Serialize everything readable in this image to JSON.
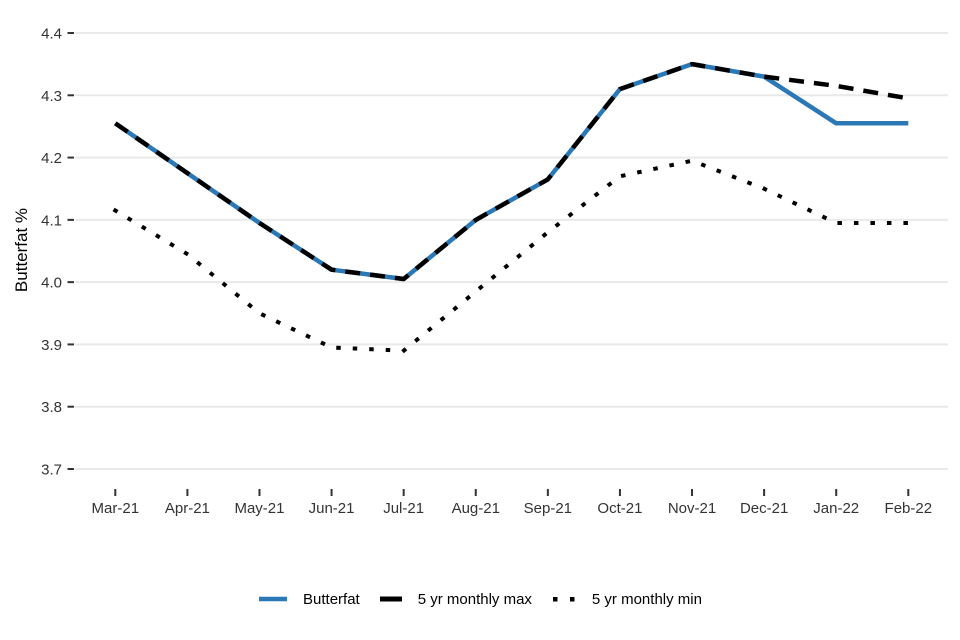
{
  "chart_data": {
    "type": "line",
    "title": "",
    "xlabel": "",
    "ylabel": "Butterfat %",
    "categories": [
      "Mar-21",
      "Apr-21",
      "May-21",
      "Jun-21",
      "Jul-21",
      "Aug-21",
      "Sep-21",
      "Oct-21",
      "Nov-21",
      "Dec-21",
      "Jan-22",
      "Feb-22"
    ],
    "y_ticks": [
      3.7,
      3.8,
      3.9,
      4.0,
      4.1,
      4.2,
      4.3,
      4.4
    ],
    "ylim": [
      3.7,
      4.4
    ],
    "grid": "horizontal-major-only",
    "legend_position": "bottom-center",
    "series": [
      {
        "name": "Butterfat",
        "style": "solid",
        "color": "#2b78b6",
        "values": [
          4.255,
          4.175,
          4.095,
          4.02,
          4.005,
          4.1,
          4.165,
          4.31,
          4.35,
          4.33,
          4.255,
          4.255
        ]
      },
      {
        "name": "5 yr monthly max",
        "style": "dashed",
        "color": "#000000",
        "values": [
          4.255,
          4.175,
          4.095,
          4.02,
          4.005,
          4.1,
          4.165,
          4.31,
          4.35,
          4.33,
          4.315,
          4.295
        ]
      },
      {
        "name": "5 yr monthly min",
        "style": "dotted",
        "color": "#000000",
        "values": [
          4.115,
          4.045,
          3.95,
          3.895,
          3.89,
          3.985,
          4.08,
          4.17,
          4.195,
          4.15,
          4.095,
          4.095
        ]
      }
    ],
    "colors": {
      "grid": "#e9e9e9",
      "tick": "#333333",
      "tick_label": "#333333",
      "text": "#000000"
    }
  }
}
